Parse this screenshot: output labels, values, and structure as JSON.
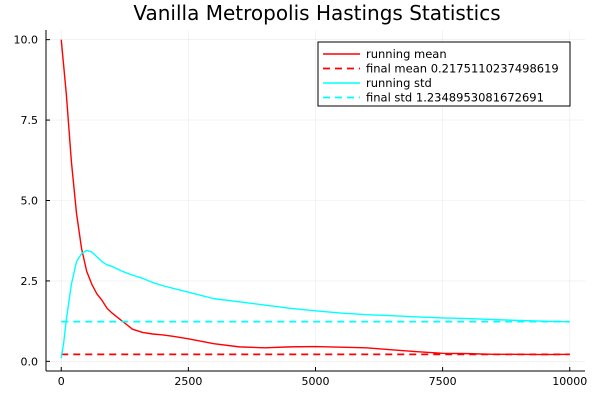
{
  "chart_data": {
    "type": "line",
    "title": "Vanilla Metropolis Hastings Statistics",
    "xlabel": "",
    "ylabel": "",
    "xlim": [
      -300,
      10300
    ],
    "ylim": [
      -0.3,
      10.3
    ],
    "xticks": [
      0,
      2500,
      5000,
      7500,
      10000
    ],
    "xtick_labels": [
      "0",
      "2500",
      "5000",
      "7500",
      "10000"
    ],
    "yticks": [
      0.0,
      2.5,
      5.0,
      7.5,
      10.0
    ],
    "ytick_labels": [
      "0.0",
      "2.5",
      "5.0",
      "7.5",
      "10.0"
    ],
    "grid": true,
    "legend_position": "top-right",
    "series": [
      {
        "name": "running mean",
        "color": "#ff0000",
        "dash": "solid",
        "x": [
          0,
          100,
          200,
          300,
          400,
          500,
          600,
          700,
          800,
          900,
          1000,
          1200,
          1400,
          1600,
          1800,
          2000,
          2200,
          2500,
          3000,
          3500,
          4000,
          4500,
          5000,
          5500,
          6000,
          6500,
          7000,
          7500,
          8000,
          8500,
          9000,
          9500,
          10000
        ],
        "y": [
          10.0,
          8.3,
          6.2,
          4.6,
          3.5,
          2.8,
          2.4,
          2.1,
          1.9,
          1.65,
          1.5,
          1.25,
          1.0,
          0.9,
          0.85,
          0.82,
          0.78,
          0.7,
          0.55,
          0.45,
          0.42,
          0.45,
          0.46,
          0.44,
          0.42,
          0.36,
          0.3,
          0.25,
          0.24,
          0.22,
          0.22,
          0.21,
          0.22
        ]
      },
      {
        "name": "final mean 0.2175110237498619",
        "color": "#ff0000",
        "dash": "dashed",
        "x": [
          0,
          10000
        ],
        "y": [
          0.2175110237498619,
          0.2175110237498619
        ]
      },
      {
        "name": "running std",
        "color": "#00ffff",
        "dash": "solid",
        "x": [
          0,
          50,
          100,
          200,
          300,
          400,
          500,
          600,
          700,
          800,
          900,
          1000,
          1200,
          1400,
          1600,
          1800,
          2000,
          2500,
          3000,
          3500,
          4000,
          4500,
          5000,
          5500,
          6000,
          6500,
          7000,
          7500,
          8000,
          8500,
          9000,
          9500,
          10000
        ],
        "y": [
          0.1,
          0.6,
          1.3,
          2.4,
          3.1,
          3.35,
          3.45,
          3.4,
          3.25,
          3.1,
          3.0,
          2.95,
          2.8,
          2.68,
          2.58,
          2.45,
          2.35,
          2.15,
          1.95,
          1.85,
          1.75,
          1.65,
          1.57,
          1.5,
          1.45,
          1.42,
          1.38,
          1.35,
          1.33,
          1.3,
          1.27,
          1.25,
          1.23
        ]
      },
      {
        "name": "final std 1.2348953081672691",
        "color": "#00ffff",
        "dash": "dashed",
        "x": [
          0,
          10000
        ],
        "y": [
          1.2348953081672691,
          1.2348953081672691
        ]
      }
    ]
  }
}
